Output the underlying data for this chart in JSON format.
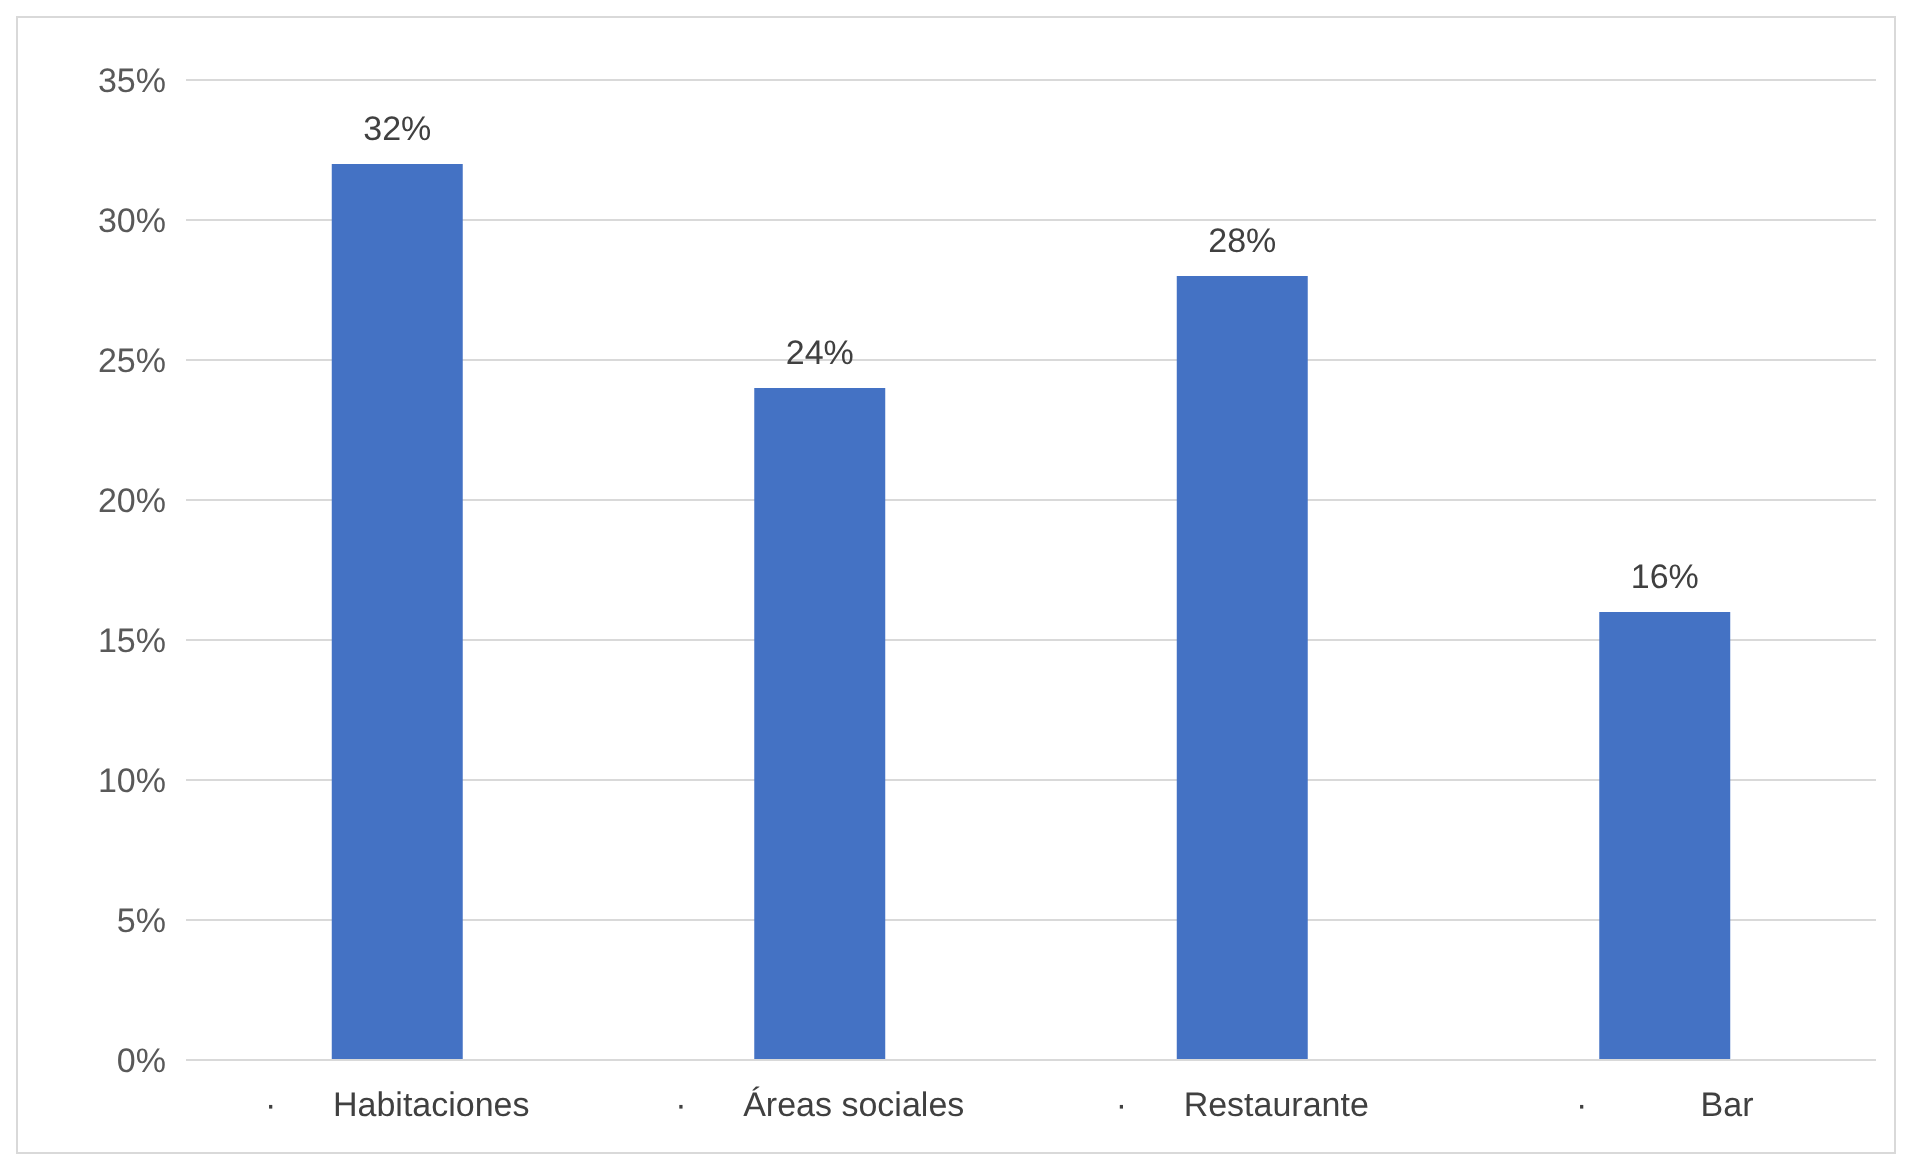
{
  "chart_data": {
    "type": "bar",
    "categories": [
      "·      Habitaciones",
      "·      Áreas sociales",
      "·      Restaurante",
      "·            Bar"
    ],
    "values": [
      32,
      24,
      28,
      16
    ],
    "value_labels": [
      "32%",
      "24%",
      "28%",
      "16%"
    ],
    "color": "#4472c4",
    "ylim": [
      0,
      35
    ],
    "yticks": [
      {
        "value": 0,
        "label": "0%"
      },
      {
        "value": 5,
        "label": "5%"
      },
      {
        "value": 10,
        "label": "10%"
      },
      {
        "value": 15,
        "label": "15%"
      },
      {
        "value": 20,
        "label": "20%"
      },
      {
        "value": 25,
        "label": "25%"
      },
      {
        "value": 30,
        "label": "30%"
      },
      {
        "value": 35,
        "label": "35%"
      }
    ],
    "grid": "y"
  }
}
